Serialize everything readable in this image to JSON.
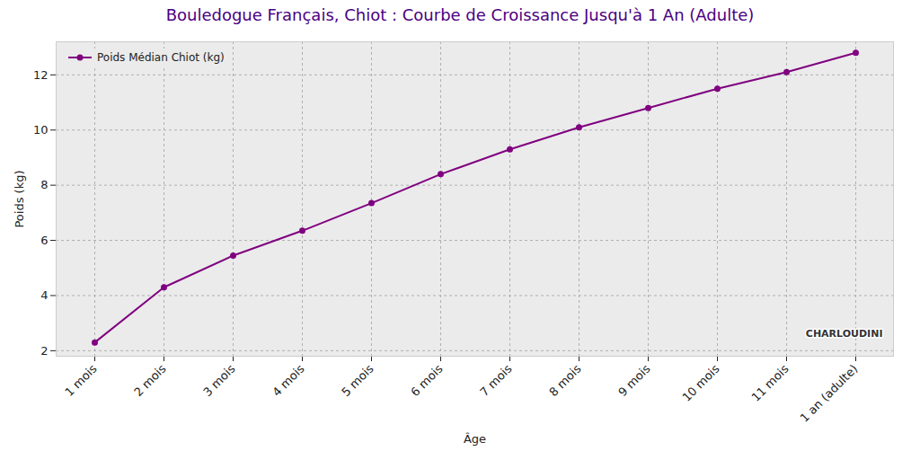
{
  "chart_data": {
    "type": "line",
    "title": "Bouledogue Français, Chiot : Courbe de Croissance Jusqu'à 1 An (Adulte)",
    "x_label": "Âge",
    "y_label": "Poids (kg)",
    "categories": [
      "1 mois",
      "2 mois",
      "3 mois",
      "4 mois",
      "5 mois",
      "6 mois",
      "7 mois",
      "8 mois",
      "9 mois",
      "10 mois",
      "11 mois",
      "1 an (adulte)"
    ],
    "series": [
      {
        "name": "Poids Médian Chiot (kg)",
        "color": "#800080",
        "marker": "circle",
        "values": [
          2.3,
          4.3,
          5.45,
          6.35,
          7.35,
          8.4,
          9.3,
          10.1,
          10.8,
          11.5,
          12.1,
          12.8
        ]
      }
    ],
    "ylim": [
      1.8,
      13.2
    ],
    "yticks": [
      2,
      4,
      6,
      8,
      10,
      12
    ],
    "grid": true,
    "legend": "upper left",
    "annotations": [
      "CHARLOUDINI"
    ]
  }
}
